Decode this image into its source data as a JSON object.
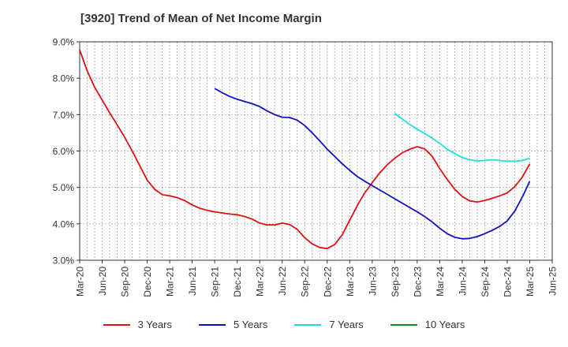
{
  "title": "[3920]  Trend of Mean of Net Income Margin",
  "chart_data": {
    "type": "line",
    "title": "[3920]  Trend of Mean of Net Income Margin",
    "xlabel": "",
    "ylabel": "",
    "ylim": [
      3.0,
      9.0
    ],
    "yticks": [
      "3.0%",
      "4.0%",
      "5.0%",
      "6.0%",
      "7.0%",
      "8.0%",
      "9.0%"
    ],
    "xticks": [
      "Mar-20",
      "Jun-20",
      "Sep-20",
      "Dec-20",
      "Mar-21",
      "Jun-21",
      "Sep-21",
      "Dec-21",
      "Mar-22",
      "Jun-22",
      "Sep-22",
      "Dec-22",
      "Mar-23",
      "Jun-23",
      "Sep-23",
      "Dec-23",
      "Mar-24",
      "Jun-24",
      "Sep-24",
      "Dec-24",
      "Mar-25",
      "Jun-25"
    ],
    "grid": true,
    "legend_position": "bottom",
    "series": [
      {
        "name": "3 Years",
        "color": "#dd1111",
        "start_index": 0,
        "values": [
          8.78,
          8.2,
          7.75,
          7.4,
          7.05,
          6.72,
          6.38,
          6.0,
          5.6,
          5.2,
          4.95,
          4.8,
          4.77,
          4.72,
          4.64,
          4.52,
          4.43,
          4.37,
          4.33,
          4.3,
          4.27,
          4.25,
          4.2,
          4.13,
          4.02,
          3.97,
          3.97,
          4.02,
          3.98,
          3.85,
          3.62,
          3.45,
          3.35,
          3.32,
          3.43,
          3.7,
          4.1,
          4.5,
          4.85,
          5.13,
          5.4,
          5.62,
          5.8,
          5.95,
          6.05,
          6.12,
          6.06,
          5.85,
          5.52,
          5.22,
          4.95,
          4.75,
          4.63,
          4.6,
          4.64,
          4.7,
          4.77,
          4.85,
          5.02,
          5.28,
          5.65
        ]
      },
      {
        "name": "5 Years",
        "color": "#1111bb",
        "start_index": 18,
        "values": [
          7.72,
          7.6,
          7.5,
          7.42,
          7.36,
          7.3,
          7.22,
          7.1,
          7.0,
          6.93,
          6.92,
          6.85,
          6.7,
          6.5,
          6.28,
          6.05,
          5.85,
          5.65,
          5.47,
          5.3,
          5.17,
          5.05,
          4.93,
          4.81,
          4.69,
          4.57,
          4.45,
          4.33,
          4.2,
          4.05,
          3.88,
          3.73,
          3.63,
          3.59,
          3.6,
          3.65,
          3.73,
          3.82,
          3.93,
          4.08,
          4.35,
          4.73,
          5.17
        ]
      },
      {
        "name": "7 Years",
        "color": "#22dddd",
        "start_index": 42,
        "values": [
          7.03,
          6.88,
          6.73,
          6.6,
          6.48,
          6.35,
          6.21,
          6.05,
          5.93,
          5.82,
          5.76,
          5.73,
          5.74,
          5.76,
          5.74,
          5.72,
          5.72,
          5.74,
          5.8
        ]
      },
      {
        "name": "10 Years",
        "color": "#1a8a1a",
        "start_index": 0,
        "values": []
      }
    ]
  }
}
